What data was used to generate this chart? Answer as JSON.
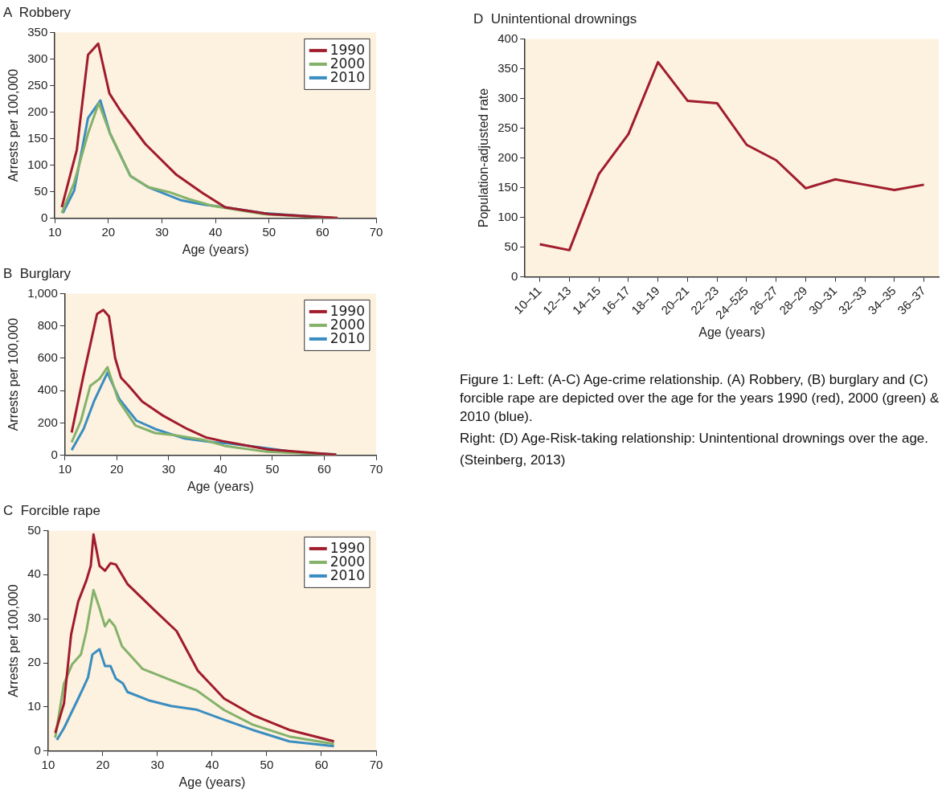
{
  "chart_data": [
    {
      "type": "line",
      "title": "A  Robbery",
      "xlabel": "Age (years)",
      "ylabel": "Arrests per 100,000",
      "xlim": [
        10,
        70
      ],
      "xticks": [
        10,
        20,
        30,
        40,
        50,
        60,
        70
      ],
      "ylim": [
        0,
        350
      ],
      "yticks": [
        0,
        50,
        100,
        150,
        200,
        250,
        300,
        350
      ],
      "grid": false,
      "legend": "top right",
      "series": [
        {
          "name": "1990",
          "color": "#a01c2c",
          "x": [
            11.3,
            14.1,
            16.2,
            18.1,
            20.2,
            22.3,
            26.9,
            32.6,
            37.7,
            41.8,
            50,
            62.8
          ],
          "values": [
            21,
            129,
            308,
            329,
            235,
            202,
            140,
            83,
            47,
            21,
            8,
            1
          ]
        },
        {
          "name": "2000",
          "color": "#84b26a",
          "x": [
            11.3,
            13.6,
            16.2,
            18.2,
            20.3,
            24.1,
            27.4,
            31.5,
            35.1,
            39.7,
            49,
            62.8
          ],
          "values": [
            10,
            67,
            160,
            217,
            160,
            80,
            59,
            49,
            36,
            23,
            8,
            0
          ]
        },
        {
          "name": "2010",
          "color": "#3a8dc0",
          "x": [
            11.5,
            13.6,
            16.2,
            18.5,
            20.3,
            24.1,
            27.4,
            33.6,
            37.7,
            41.8,
            49,
            62.8
          ],
          "values": [
            10,
            52,
            189,
            222,
            160,
            80,
            59,
            34,
            26,
            21,
            10,
            0
          ]
        }
      ]
    },
    {
      "type": "line",
      "title": "B  Burglary",
      "xlabel": "Age (years)",
      "ylabel": "Arrests per 100,000",
      "xlim": [
        10,
        70
      ],
      "xticks": [
        10,
        20,
        30,
        40,
        50,
        60,
        70
      ],
      "ylim": [
        0,
        1000
      ],
      "yticks": [
        0,
        200,
        400,
        600,
        800,
        {
          "value": 1000,
          "label": "1,000"
        }
      ],
      "grid": false,
      "legend": "top right",
      "series": [
        {
          "name": "1990",
          "color": "#a01c2c",
          "x": [
            11.3,
            13.6,
            16.2,
            17.4,
            18.5,
            19.7,
            20.8,
            22.3,
            24.9,
            29,
            33.6,
            37.2,
            40.3,
            49,
            62.3
          ],
          "values": [
            141,
            496,
            874,
            899,
            859,
            600,
            481,
            430,
            333,
            244,
            163,
            111,
            89,
            37,
            4
          ]
        },
        {
          "name": "2000",
          "color": "#84b26a",
          "x": [
            11.3,
            13.1,
            14.9,
            16.7,
            18.2,
            20.3,
            23.6,
            27.4,
            31,
            36.7,
            40.8,
            49,
            62.3
          ],
          "values": [
            81,
            215,
            430,
            474,
            545,
            341,
            185,
            138,
            126,
            96,
            59,
            22,
            4
          ]
        },
        {
          "name": "2010",
          "color": "#3a8dc0",
          "x": [
            11.3,
            13.6,
            15.6,
            18.2,
            20.5,
            23.8,
            27.4,
            33.1,
            38.7,
            41.8,
            49,
            55.6,
            62.3
          ],
          "values": [
            33,
            163,
            333,
            511,
            348,
            215,
            163,
            104,
            81,
            74,
            44,
            15,
            7
          ]
        }
      ]
    },
    {
      "type": "line",
      "title": "C  Forcible rape",
      "xlabel": "Age (years)",
      "ylabel": "Arrests per 100,000",
      "xlim": [
        10,
        70
      ],
      "xticks": [
        10,
        20,
        30,
        40,
        50,
        60,
        70
      ],
      "ylim": [
        0,
        50
      ],
      "yticks": [
        0,
        10,
        20,
        30,
        40,
        50
      ],
      "grid": false,
      "legend": "top right",
      "series": [
        {
          "name": "1990",
          "color": "#a01c2c",
          "x": [
            11.3,
            12.9,
            14.2,
            15.5,
            17,
            17.8,
            18.3,
            19.4,
            20.4,
            21.4,
            22.4,
            24.5,
            29.4,
            33.5,
            37.4,
            42.2,
            47.4,
            54.1,
            62.3
          ],
          "values": [
            4.1,
            10.8,
            26.4,
            33.9,
            38.7,
            42,
            49.1,
            42,
            40.9,
            42.6,
            42.3,
            37.9,
            32,
            27.2,
            18.2,
            11.9,
            8.2,
            4.8,
            2.2
          ]
        },
        {
          "name": "2000",
          "color": "#84b26a",
          "x": [
            11.3,
            12.9,
            14.4,
            16,
            17,
            18.3,
            19.4,
            20.4,
            21.2,
            22.2,
            23.5,
            27.3,
            37.1,
            42.2,
            47.4,
            54.1,
            62.3
          ],
          "values": [
            3,
            15.3,
            19.7,
            21.9,
            27.2,
            36.5,
            32.4,
            28.3,
            29.8,
            28.3,
            23.8,
            18.6,
            13.8,
            9.3,
            6,
            3.3,
            1.6
          ]
        },
        {
          "name": "2010",
          "color": "#3a8dc0",
          "x": [
            11.6,
            12.9,
            15.5,
            16.5,
            17.3,
            18.1,
            19.4,
            20.4,
            21.4,
            22.4,
            23.7,
            24.5,
            28.4,
            32.5,
            37.1,
            42.2,
            47.4,
            54.1,
            62.3
          ],
          "values": [
            2.5,
            5.2,
            11.9,
            14.5,
            16.7,
            21.9,
            23.1,
            19.3,
            19.3,
            16.4,
            15.3,
            13.4,
            11.5,
            10.2,
            9.4,
            7.1,
            4.8,
            2.2,
            1.1
          ]
        }
      ]
    },
    {
      "type": "line",
      "title": "D  Unintentional drownings",
      "xlabel": "Age (years)",
      "ylabel": "Population-adjusted rate",
      "ylim": [
        0,
        400
      ],
      "yticks": [
        0,
        50,
        100,
        150,
        200,
        250,
        300,
        350,
        400
      ],
      "grid": false,
      "categories": [
        "10–11",
        "12–13",
        "14–15",
        "16–17",
        "18–19",
        "20–21",
        "22–23",
        "24–525",
        "26–27",
        "28–29",
        "30–31",
        "32–33",
        "34–35",
        "36–37"
      ],
      "series": [
        {
          "color": "#a01c2c",
          "values": [
            55,
            45,
            173,
            240,
            361,
            296,
            292,
            222,
            196,
            149,
            164,
            155,
            146,
            155
          ]
        }
      ],
      "annotations": [
        "Figure 1: Left: (A-C) Age-crime relationship. (A) Robbery, (B) burglary and (C) forcible rape are depicted over the age for the years 1990 (red), 2000 (green) & 2010 (blue).",
        "Right: (D) Age-Risk-taking relationship: Unintentional drownings over the age.",
        "(Steinberg, 2013)"
      ]
    }
  ]
}
